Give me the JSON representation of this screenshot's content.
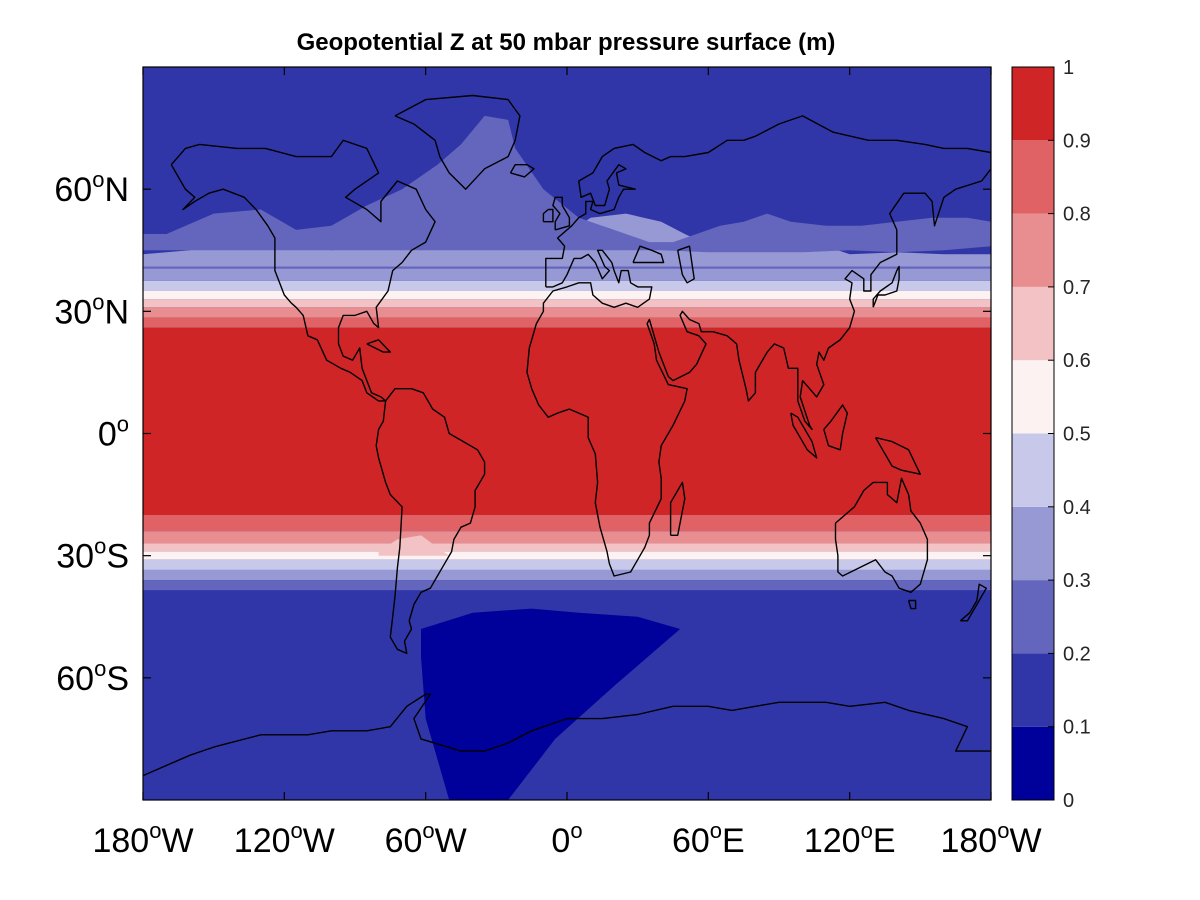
{
  "chart_data": {
    "type": "heatmap",
    "title": "Geopotential Z at 50 mbar pressure surface (m)",
    "projection": "equirectangular",
    "xlim": [
      -180,
      180
    ],
    "ylim": [
      -90,
      90
    ],
    "grid": false,
    "coastlines": true,
    "x_ticks": [
      {
        "value": -180,
        "num": "180",
        "hemi": "W"
      },
      {
        "value": -120,
        "num": "120",
        "hemi": "W"
      },
      {
        "value": -60,
        "num": "60",
        "hemi": "W"
      },
      {
        "value": 0,
        "num": "0",
        "hemi": ""
      },
      {
        "value": 60,
        "num": "60",
        "hemi": "E"
      },
      {
        "value": 120,
        "num": "120",
        "hemi": "E"
      },
      {
        "value": 180,
        "num": "180",
        "hemi": "W"
      }
    ],
    "y_ticks": [
      {
        "value": 60,
        "num": "60",
        "hemi": "N"
      },
      {
        "value": 30,
        "num": "30",
        "hemi": "N"
      },
      {
        "value": 0,
        "num": "0",
        "hemi": ""
      },
      {
        "value": -30,
        "num": "30",
        "hemi": "S"
      },
      {
        "value": -60,
        "num": "60",
        "hemi": "S"
      }
    ],
    "degree_symbol": "o",
    "colorbar": {
      "levels": [
        0,
        0.1,
        0.2,
        0.3,
        0.4,
        0.5,
        0.6,
        0.7,
        0.8,
        0.9,
        1
      ],
      "labels": [
        "0",
        "0.1",
        "0.2",
        "0.3",
        "0.4",
        "0.5",
        "0.6",
        "0.7",
        "0.8",
        "0.9",
        "1"
      ],
      "colors": [
        "#00009a",
        "#3036a8",
        "#6466bd",
        "#9799d5",
        "#c8c9ea",
        "#fcf2f2",
        "#f2c2c4",
        "#e88e91",
        "#e06265",
        "#d02527"
      ]
    },
    "field_bands_northern": [
      {
        "level_index": 9,
        "lat_from": -20,
        "lat_to": 26
      },
      {
        "level_index": 8,
        "lat_from": 26,
        "lat_to": 28.5
      },
      {
        "level_index": 7,
        "lat_from": 28.5,
        "lat_to": 31
      },
      {
        "level_index": 6,
        "lat_from": 31,
        "lat_to": 33
      },
      {
        "level_index": 5,
        "lat_from": 33,
        "lat_to": 35
      },
      {
        "level_index": 4,
        "lat_from": 35,
        "lat_to": 37.5
      },
      {
        "level_index": 3,
        "lat_from": 37.5,
        "lat_to": 40.5
      },
      {
        "level_index": 2,
        "lat_from": 40.5,
        "lat_to": 44
      },
      {
        "level_index": 1,
        "lat_from": 44,
        "lat_to": 90
      }
    ],
    "field_bands_southern": [
      {
        "level_index": 8,
        "lat_from": -20,
        "lat_to": -24
      },
      {
        "level_index": 7,
        "lat_from": -24,
        "lat_to": -27
      },
      {
        "level_index": 6,
        "lat_from": -27,
        "lat_to": -29
      },
      {
        "level_index": 5,
        "lat_from": -29,
        "lat_to": -31
      },
      {
        "level_index": 4,
        "lat_from": -31,
        "lat_to": -33.5
      },
      {
        "level_index": 3,
        "lat_from": -33.5,
        "lat_to": -36
      },
      {
        "level_index": 2,
        "lat_from": -36,
        "lat_to": -38.5
      },
      {
        "level_index": 1,
        "lat_from": -38.5,
        "lat_to": -90
      }
    ],
    "minimum_region": {
      "level_index": 0,
      "description_lonlat": [
        [
          -62,
          -48
        ],
        [
          -40,
          -44
        ],
        [
          -15,
          -43
        ],
        [
          5,
          -44
        ],
        [
          30,
          -45
        ],
        [
          48,
          -48
        ],
        [
          20,
          -62
        ],
        [
          -5,
          -75
        ],
        [
          -25,
          -90
        ],
        [
          -50,
          -90
        ],
        [
          -60,
          -70
        ],
        [
          -62,
          -55
        ]
      ]
    },
    "polar_lobes": {
      "level_index": 2,
      "lonlat": [
        [
          -170,
          49
        ],
        [
          -150,
          54
        ],
        [
          -130,
          55
        ],
        [
          -115,
          50
        ],
        [
          -100,
          51
        ],
        [
          -85,
          56
        ],
        [
          -70,
          60
        ],
        [
          -55,
          66
        ],
        [
          -45,
          71
        ],
        [
          -35,
          78
        ],
        [
          -25,
          77
        ],
        [
          -22,
          70
        ],
        [
          -10,
          60
        ],
        [
          5,
          53
        ],
        [
          20,
          50
        ],
        [
          35,
          47
        ],
        [
          45,
          47
        ],
        [
          55,
          49
        ],
        [
          65,
          51
        ],
        [
          75,
          52
        ],
        [
          85,
          54
        ],
        [
          95,
          52
        ],
        [
          110,
          51
        ],
        [
          125,
          51
        ],
        [
          140,
          52
        ],
        [
          155,
          53
        ],
        [
          170,
          53
        ],
        [
          180,
          52
        ],
        [
          180,
          46
        ],
        [
          160,
          45
        ],
        [
          140,
          44.5
        ],
        [
          120,
          45
        ],
        [
          100,
          44.5
        ],
        [
          80,
          44.5
        ],
        [
          60,
          44.5
        ],
        [
          40,
          45
        ],
        [
          20,
          45
        ],
        [
          0,
          45
        ],
        [
          -20,
          45
        ],
        [
          -40,
          45
        ],
        [
          -60,
          45
        ],
        [
          -80,
          45
        ],
        [
          -100,
          45
        ],
        [
          -120,
          45
        ],
        [
          -140,
          45
        ],
        [
          -160,
          45
        ],
        [
          -180,
          45
        ],
        [
          -180,
          49
        ]
      ]
    },
    "pale_lobes": {
      "level_index": 3,
      "lonlat": [
        [
          -180,
          44
        ],
        [
          -160,
          45
        ],
        [
          -140,
          47
        ],
        [
          -125,
          50
        ],
        [
          -115,
          47
        ],
        [
          -100,
          45
        ],
        [
          -85,
          46
        ],
        [
          -70,
          48
        ],
        [
          -55,
          49
        ],
        [
          -40,
          47
        ],
        [
          -20,
          47
        ],
        [
          0,
          49
        ],
        [
          10,
          53
        ],
        [
          25,
          54
        ],
        [
          40,
          52
        ],
        [
          50,
          49
        ],
        [
          65,
          45
        ],
        [
          80,
          45
        ],
        [
          95,
          47
        ],
        [
          110,
          46
        ],
        [
          120,
          44
        ],
        [
          140,
          44.5
        ],
        [
          160,
          44
        ],
        [
          180,
          44
        ],
        [
          180,
          41
        ],
        [
          -180,
          41
        ]
      ]
    },
    "southern_bulge": {
      "level_index": 6,
      "lonlat": [
        [
          -80,
          -29
        ],
        [
          -72,
          -26
        ],
        [
          -62,
          -25
        ],
        [
          -55,
          -28
        ],
        [
          -50,
          -30
        ],
        [
          -80,
          -30
        ]
      ]
    }
  }
}
